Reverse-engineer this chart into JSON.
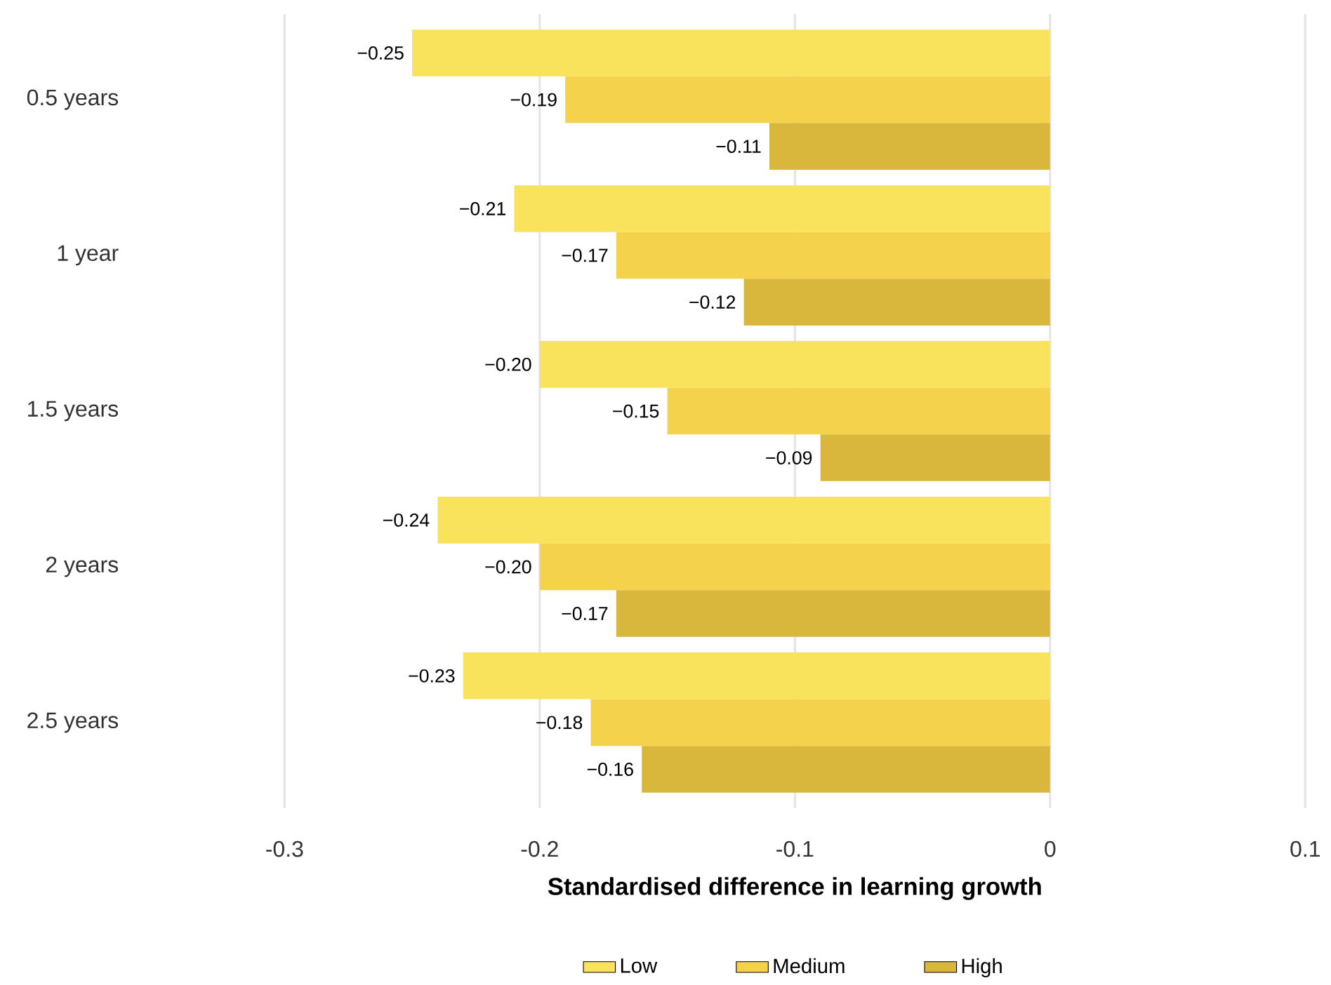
{
  "chart_data": {
    "type": "bar",
    "orientation": "horizontal",
    "xlabel": "Standardised difference in learning growth",
    "categories": [
      "0.5 years",
      "1 year",
      "1.5 years",
      "2 years",
      "2.5 years"
    ],
    "series": [
      {
        "name": "Low",
        "color": "#f9e25c",
        "values": [
          -0.25,
          -0.21,
          -0.2,
          -0.24,
          -0.23
        ],
        "value_labels": [
          "−0.25",
          "−0.21",
          "−0.20",
          "−0.24",
          "−0.23"
        ]
      },
      {
        "name": "Medium",
        "color": "#f5d24b",
        "values": [
          -0.19,
          -0.17,
          -0.15,
          -0.2,
          -0.18
        ],
        "value_labels": [
          "−0.19",
          "−0.17",
          "−0.15",
          "−0.20",
          "−0.18"
        ]
      },
      {
        "name": "High",
        "color": "#d9b73d",
        "values": [
          -0.11,
          -0.12,
          -0.09,
          -0.17,
          -0.16
        ],
        "value_labels": [
          "−0.11",
          "−0.12",
          "−0.09",
          "−0.17",
          "−0.16"
        ]
      }
    ],
    "xlim": [
      -0.3,
      0.1
    ],
    "xticks": [
      -0.3,
      -0.2,
      -0.1,
      0,
      0.1
    ],
    "grid": "x",
    "legend": "bottom"
  }
}
